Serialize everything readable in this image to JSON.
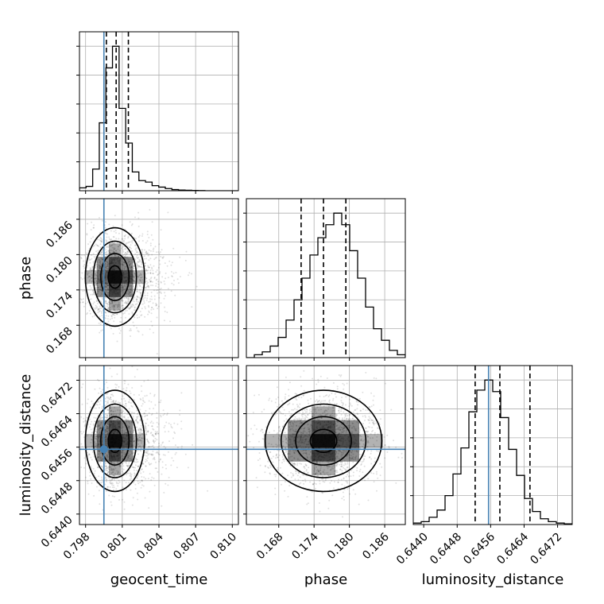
{
  "chart_data": {
    "type": "corner",
    "parameters": [
      {
        "name": "geocent_time",
        "label": "geocent_time",
        "range": [
          0.7975,
          0.8105
        ],
        "ticks": [
          "0.798",
          "0.801",
          "0.804",
          "0.807",
          "0.810"
        ],
        "tick_values": [
          0.798,
          0.801,
          0.804,
          0.807,
          0.81
        ],
        "truth": 0.7995,
        "quantiles": [
          0.7997,
          0.8005,
          0.8015
        ],
        "hist_edges_start": 0.7975,
        "hist_bin_width": 0.00054,
        "hist_counts": [
          0.02,
          0.03,
          0.15,
          0.47,
          0.85,
          1.0,
          0.57,
          0.33,
          0.13,
          0.07,
          0.06,
          0.035,
          0.025,
          0.015,
          0.008,
          0.005,
          0.003,
          0.002,
          0.001,
          0.0,
          0.0,
          0.0,
          0.0,
          0.0
        ]
      },
      {
        "name": "phase",
        "label": "phase",
        "range": [
          0.1625,
          0.1895
        ],
        "ticks": [
          "0.168",
          "0.174",
          "0.180",
          "0.186"
        ],
        "tick_values": [
          0.168,
          0.174,
          0.18,
          0.186
        ],
        "truth": null,
        "quantiles": [
          0.1718,
          0.1756,
          0.1794
        ],
        "hist_edges_start": 0.1625,
        "hist_bin_width": 0.00135,
        "hist_counts": [
          0.0,
          0.02,
          0.04,
          0.08,
          0.14,
          0.26,
          0.4,
          0.55,
          0.71,
          0.83,
          0.92,
          1.0,
          0.92,
          0.74,
          0.55,
          0.35,
          0.2,
          0.12,
          0.05,
          0.02
        ]
      },
      {
        "name": "luminosity_distance",
        "label": "luminosity_distance",
        "range": [
          0.64375,
          0.64755
        ],
        "ticks": [
          "0.6440",
          "0.6448",
          "0.6456",
          "0.6464",
          "0.6472"
        ],
        "tick_values": [
          0.644,
          0.6448,
          0.6456,
          0.6464,
          0.6472
        ],
        "truth": 0.64555,
        "quantiles": [
          0.64523,
          0.64582,
          0.64654
        ],
        "hist_edges_start": 0.64375,
        "hist_bin_width": 0.00019,
        "hist_counts": [
          0.01,
          0.02,
          0.05,
          0.1,
          0.2,
          0.35,
          0.53,
          0.78,
          0.93,
          1.0,
          0.92,
          0.74,
          0.52,
          0.34,
          0.18,
          0.09,
          0.04,
          0.02,
          0.01,
          0.005
        ]
      }
    ],
    "pairs": [
      {
        "x": "geocent_time",
        "y": "phase",
        "center": [
          0.8004,
          0.1762
        ],
        "spread": [
          0.0011,
          0.0038
        ],
        "truth": [
          0.7995,
          null
        ]
      },
      {
        "x": "geocent_time",
        "y": "luminosity_distance",
        "center": [
          0.8004,
          0.64575
        ],
        "spread": [
          0.0011,
          0.00055
        ],
        "truth": [
          0.7995,
          0.64555
        ]
      },
      {
        "x": "phase",
        "y": "luminosity_distance",
        "center": [
          0.1756,
          0.64575
        ],
        "spread": [
          0.0045,
          0.00055
        ],
        "truth": [
          null,
          0.64555
        ]
      }
    ],
    "grid": true,
    "truth_color": "#4682b4",
    "hist_color": "#000000",
    "contour_color": "#000000"
  }
}
